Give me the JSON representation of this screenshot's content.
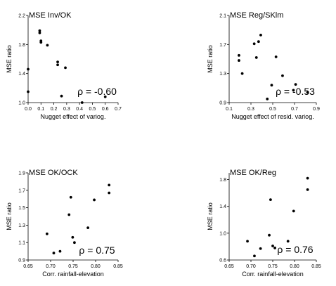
{
  "chart_data": [
    {
      "type": "scatter",
      "title": "MSE Inv/OK",
      "xlabel": "Nugget effect of variog.",
      "ylabel": "MSE ratio",
      "annotation": "ρ = -0.60",
      "xlim": [
        0.0,
        0.7
      ],
      "ylim": [
        1.0,
        2.2
      ],
      "xticks": [
        "0.0",
        "0.1",
        "0.2",
        "0.3",
        "0.4",
        "0.5",
        "0.6",
        "0.7"
      ],
      "yticks": [
        "1.0",
        "1.4",
        "1.8",
        "2.2"
      ],
      "x": [
        0.0,
        0.0,
        0.09,
        0.09,
        0.1,
        0.1,
        0.15,
        0.23,
        0.23,
        0.29,
        0.26,
        0.42,
        0.6
      ],
      "y": [
        1.15,
        1.46,
        1.96,
        1.99,
        1.85,
        1.83,
        1.79,
        1.56,
        1.52,
        1.48,
        1.09,
        1.0,
        1.08
      ]
    },
    {
      "type": "scatter",
      "title": "MSE Reg/SKlm",
      "xlabel": "Nugget effect of resid. variog.",
      "ylabel": "MSE ratio",
      "annotation": "ρ = -0.53",
      "xlim": [
        0.1,
        0.9
      ],
      "ylim": [
        0.9,
        2.1
      ],
      "xticks": [
        "0.1",
        "0.3",
        "0.5",
        "0.7",
        "0.9"
      ],
      "yticks": [
        "0.9",
        "1.3",
        "1.7",
        "2.1"
      ],
      "x": [
        0.19,
        0.19,
        0.22,
        0.33,
        0.35,
        0.37,
        0.39,
        0.45,
        0.49,
        0.53,
        0.59,
        0.69,
        0.71,
        0.82
      ],
      "y": [
        1.55,
        1.48,
        1.3,
        1.71,
        1.52,
        1.74,
        1.83,
        0.95,
        1.14,
        1.53,
        1.27,
        1.07,
        1.15,
        1.04
      ]
    },
    {
      "type": "scatter",
      "title": "MSE OK/OCK",
      "xlabel": "Corr. rainfall-elevation",
      "ylabel": "MSE ratio",
      "annotation": "ρ = 0.75",
      "xlim": [
        0.65,
        0.85
      ],
      "ylim": [
        0.9,
        1.9
      ],
      "xticks": [
        "0.65",
        "0.70",
        "0.75",
        "0.80",
        "0.85"
      ],
      "yticks": [
        "0.9",
        "1.1",
        "1.3",
        "1.5",
        "1.7",
        "1.9"
      ],
      "x": [
        0.692,
        0.707,
        0.721,
        0.741,
        0.745,
        0.749,
        0.753,
        0.783,
        0.797,
        0.83,
        0.83
      ],
      "y": [
        1.2,
        0.98,
        1.0,
        1.42,
        1.62,
        1.16,
        1.1,
        1.27,
        1.59,
        1.76,
        1.67
      ]
    },
    {
      "type": "scatter",
      "title": "MSE OK/Reg",
      "xlabel": "Corr. rainfall-elevation",
      "ylabel": "MSE ratio",
      "annotation": "ρ = 0.76",
      "xlim": [
        0.65,
        0.85
      ],
      "ylim": [
        0.6,
        1.9
      ],
      "xticks": [
        "0.65",
        "0.70",
        "0.75",
        "0.80",
        "0.85"
      ],
      "yticks": [
        "0.6",
        "1.0",
        "1.4",
        "1.8"
      ],
      "x": [
        0.692,
        0.708,
        0.722,
        0.742,
        0.745,
        0.75,
        0.755,
        0.785,
        0.798,
        0.83,
        0.83
      ],
      "y": [
        0.88,
        0.66,
        0.77,
        0.97,
        1.5,
        0.81,
        0.78,
        0.88,
        1.33,
        1.82,
        1.65
      ]
    }
  ]
}
